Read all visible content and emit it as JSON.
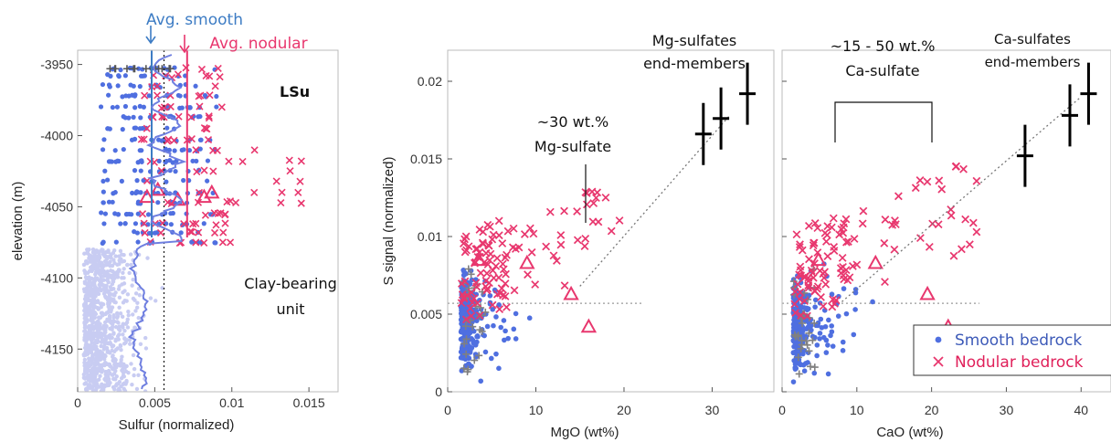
{
  "colors": {
    "smooth": "#4f6fe0",
    "nodular": "#e8376e",
    "smooth_light": "#c8ccf2",
    "other": "#808080"
  },
  "chart_data": [
    {
      "type": "scatter",
      "panel": "depth-profile",
      "xlabel": "Sulfur (normalized)",
      "ylabel": "elevation (m)",
      "xlim": [
        0,
        0.017
      ],
      "ylim": [
        -4180,
        -3940
      ],
      "xticks": [
        "0",
        "0.005",
        "0.01",
        "0.015"
      ],
      "yticks": [
        "-3950",
        "-4000",
        "-4050",
        "-4100",
        "-4150"
      ],
      "annotations": {
        "avg_smooth_label": "Avg. smooth",
        "avg_nodular_label": "Avg. nodular",
        "lsu": "LSu",
        "clay_line1": "Clay-bearing",
        "clay_line2": "unit"
      },
      "avg_smooth": 0.0048,
      "avg_nodular": 0.0071,
      "ref_line": 0.0056
    },
    {
      "type": "scatter",
      "panel": "MgO",
      "xlabel": "MgO (wt%)",
      "ylabel": "S signal (normalized)",
      "xlim": [
        0,
        37
      ],
      "ylim": [
        0,
        0.022
      ],
      "xticks": [
        "0",
        "10",
        "20",
        "30"
      ],
      "yticks": [
        "0",
        "0.005",
        "0.01",
        "0.015",
        "0.02"
      ],
      "annotations": {
        "mix_line1": "~30 wt.%",
        "mix_line2": "Mg-sulfate",
        "em_line1": "Mg-sulfates",
        "em_line2": "end-members"
      },
      "endmembers": [
        {
          "x": 29,
          "y": 0.0166,
          "yerr": 0.002
        },
        {
          "x": 31,
          "y": 0.0176,
          "yerr": 0.002
        },
        {
          "x": 34,
          "y": 0.0192,
          "yerr": 0.002
        }
      ],
      "baseline": 0.0057
    },
    {
      "type": "scatter",
      "panel": "CaO",
      "xlabel": "CaO (wt%)",
      "xlim": [
        0,
        44
      ],
      "ylim": [
        0,
        0.022
      ],
      "xticks": [
        "0",
        "10",
        "20",
        "30",
        "40"
      ],
      "annotations": {
        "mix_line1": "~15 - 50 wt.%",
        "mix_line2": "Ca-sulfate",
        "em_line1": "Ca-sulfates",
        "em_line2": "end-members"
      },
      "endmembers": [
        {
          "x": 32.5,
          "y": 0.0152,
          "yerr": 0.002
        },
        {
          "x": 38.5,
          "y": 0.0178,
          "yerr": 0.002
        },
        {
          "x": 41,
          "y": 0.0192,
          "yerr": 0.002
        }
      ],
      "baseline": 0.0057,
      "legend": {
        "smooth": "Smooth bedrock",
        "nodular": "Nodular bedrock",
        "position": "bottom-right"
      }
    }
  ]
}
